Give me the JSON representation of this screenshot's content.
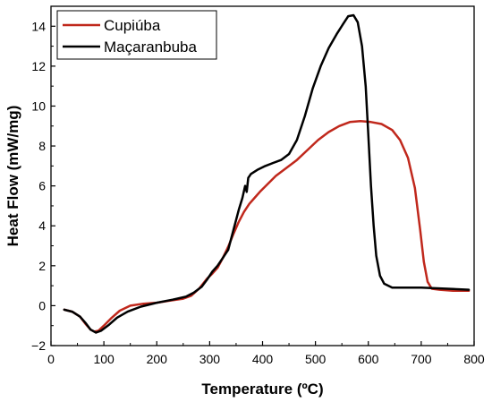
{
  "chart_data": {
    "type": "line",
    "xlabel": "Temperature (ºC)",
    "ylabel": "Heat Flow (mW/mg)",
    "xlim": [
      0,
      800
    ],
    "ylim": [
      -2,
      15
    ],
    "xticks": [
      0,
      100,
      200,
      300,
      400,
      500,
      600,
      700,
      800
    ],
    "yticks": [
      -2,
      0,
      2,
      4,
      6,
      8,
      10,
      12,
      14
    ],
    "grid": false,
    "legend_position": "top-left",
    "series": [
      {
        "name": "Cupiúba",
        "color": "#c0281c",
        "points": [
          [
            25,
            -0.2
          ],
          [
            40,
            -0.3
          ],
          [
            55,
            -0.55
          ],
          [
            65,
            -0.9
          ],
          [
            75,
            -1.2
          ],
          [
            82,
            -1.3
          ],
          [
            90,
            -1.25
          ],
          [
            100,
            -1.0
          ],
          [
            115,
            -0.6
          ],
          [
            130,
            -0.25
          ],
          [
            150,
            0.0
          ],
          [
            175,
            0.1
          ],
          [
            200,
            0.15
          ],
          [
            225,
            0.25
          ],
          [
            250,
            0.35
          ],
          [
            265,
            0.5
          ],
          [
            280,
            0.85
          ],
          [
            295,
            1.35
          ],
          [
            305,
            1.6
          ],
          [
            315,
            1.9
          ],
          [
            325,
            2.4
          ],
          [
            335,
            2.95
          ],
          [
            345,
            3.6
          ],
          [
            355,
            4.2
          ],
          [
            365,
            4.7
          ],
          [
            375,
            5.1
          ],
          [
            385,
            5.4
          ],
          [
            395,
            5.7
          ],
          [
            410,
            6.1
          ],
          [
            425,
            6.5
          ],
          [
            445,
            6.9
          ],
          [
            465,
            7.3
          ],
          [
            485,
            7.8
          ],
          [
            505,
            8.3
          ],
          [
            525,
            8.7
          ],
          [
            545,
            9.0
          ],
          [
            565,
            9.2
          ],
          [
            585,
            9.25
          ],
          [
            605,
            9.2
          ],
          [
            625,
            9.1
          ],
          [
            645,
            8.8
          ],
          [
            660,
            8.3
          ],
          [
            675,
            7.4
          ],
          [
            688,
            5.9
          ],
          [
            698,
            3.8
          ],
          [
            705,
            2.2
          ],
          [
            712,
            1.2
          ],
          [
            720,
            0.85
          ],
          [
            735,
            0.8
          ],
          [
            760,
            0.75
          ],
          [
            790,
            0.75
          ]
        ]
      },
      {
        "name": "Maçaranbuba",
        "color": "#000000",
        "points": [
          [
            25,
            -0.2
          ],
          [
            40,
            -0.3
          ],
          [
            55,
            -0.55
          ],
          [
            65,
            -0.85
          ],
          [
            75,
            -1.2
          ],
          [
            85,
            -1.35
          ],
          [
            95,
            -1.25
          ],
          [
            110,
            -0.95
          ],
          [
            125,
            -0.6
          ],
          [
            145,
            -0.3
          ],
          [
            170,
            -0.05
          ],
          [
            200,
            0.15
          ],
          [
            230,
            0.3
          ],
          [
            255,
            0.45
          ],
          [
            270,
            0.65
          ],
          [
            285,
            0.95
          ],
          [
            295,
            1.3
          ],
          [
            305,
            1.7
          ],
          [
            315,
            2.0
          ],
          [
            325,
            2.4
          ],
          [
            335,
            2.8
          ],
          [
            345,
            3.8
          ],
          [
            355,
            4.8
          ],
          [
            362,
            5.4
          ],
          [
            367,
            6.0
          ],
          [
            370,
            5.7
          ],
          [
            373,
            6.4
          ],
          [
            378,
            6.6
          ],
          [
            390,
            6.8
          ],
          [
            405,
            7.0
          ],
          [
            420,
            7.15
          ],
          [
            435,
            7.3
          ],
          [
            450,
            7.6
          ],
          [
            465,
            8.3
          ],
          [
            480,
            9.5
          ],
          [
            495,
            10.9
          ],
          [
            510,
            12.0
          ],
          [
            525,
            12.9
          ],
          [
            540,
            13.6
          ],
          [
            552,
            14.1
          ],
          [
            562,
            14.5
          ],
          [
            572,
            14.55
          ],
          [
            580,
            14.2
          ],
          [
            588,
            13.0
          ],
          [
            595,
            11.0
          ],
          [
            600,
            8.5
          ],
          [
            605,
            6.0
          ],
          [
            610,
            4.0
          ],
          [
            615,
            2.5
          ],
          [
            622,
            1.5
          ],
          [
            630,
            1.1
          ],
          [
            645,
            0.9
          ],
          [
            670,
            0.9
          ],
          [
            700,
            0.9
          ],
          [
            750,
            0.85
          ],
          [
            790,
            0.8
          ]
        ]
      }
    ]
  }
}
